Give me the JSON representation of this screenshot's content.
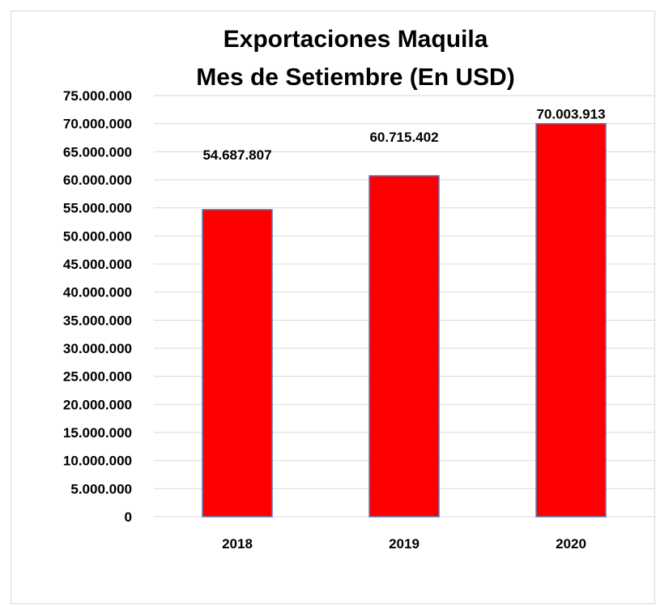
{
  "chart_data": {
    "type": "bar",
    "title": "Exportaciones Maquila",
    "subtitle": "Mes de Setiembre (En USD)",
    "categories": [
      "2018",
      "2019",
      "2020"
    ],
    "values": [
      54687807,
      60715402,
      70003913
    ],
    "data_labels": [
      "54.687.807",
      "60.715.402",
      "70.003.913"
    ],
    "xlabel": "",
    "ylabel": "",
    "ylim": [
      0,
      75000000
    ],
    "y_ticks": [
      0,
      5000000,
      10000000,
      15000000,
      20000000,
      25000000,
      30000000,
      35000000,
      40000000,
      45000000,
      50000000,
      55000000,
      60000000,
      65000000,
      70000000,
      75000000
    ],
    "y_tick_labels": [
      "0",
      "5.000.000",
      "10.000.000",
      "15.000.000",
      "20.000.000",
      "25.000.000",
      "30.000.000",
      "35.000.000",
      "40.000.000",
      "45.000.000",
      "50.000.000",
      "55.000.000",
      "60.000.000",
      "65.000.000",
      "70.000.000",
      "75.000.000"
    ],
    "grid": true,
    "legend": "none",
    "colors": {
      "bar_fill": "#ff0000",
      "bar_stroke": "#5b7bc0",
      "grid": "#d9d9d9"
    }
  }
}
